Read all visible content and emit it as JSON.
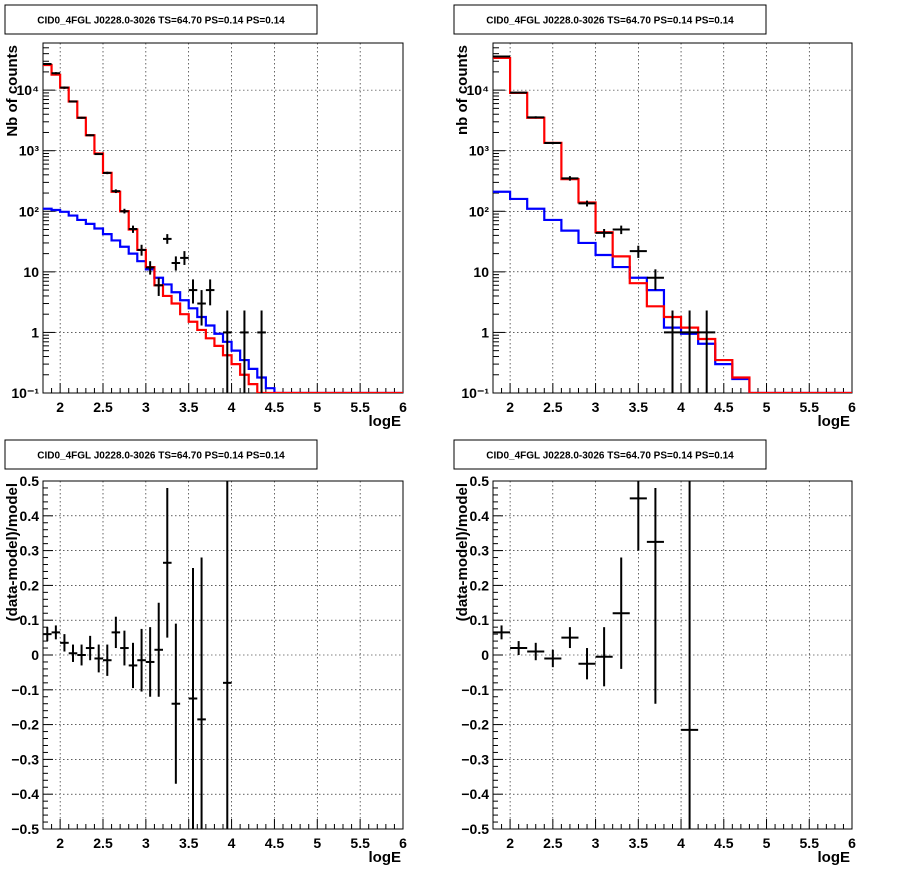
{
  "chart_data": [
    {
      "panel": "top-left",
      "type": "line",
      "title": "CID0_4FGL J0228.0-3026 TS=64.70 PS=0.14 PS=0.14",
      "xlabel": "logE",
      "ylabel": "Nb of counts",
      "xlim": [
        1.8,
        6
      ],
      "ylim": [
        0.1,
        60000
      ],
      "yscale": "log",
      "grid": true,
      "x_ticks": [
        "2",
        "2.5",
        "3",
        "3.5",
        "4",
        "4.5",
        "5",
        "5.5",
        "6"
      ],
      "y_ticks": [
        "10⁻¹",
        "1",
        "10",
        "10²",
        "10³",
        "10⁴"
      ],
      "bin_edges": [
        1.8,
        1.9,
        2.0,
        2.1,
        2.2,
        2.3,
        2.4,
        2.5,
        2.6,
        2.7,
        2.8,
        2.9,
        3.0,
        3.1,
        3.2,
        3.3,
        3.4,
        3.5,
        3.6,
        3.7,
        3.8,
        3.9,
        4.0,
        4.1,
        4.2,
        4.3,
        4.4,
        4.5,
        4.6,
        4.7,
        4.8,
        4.9,
        5.0,
        5.1,
        5.2,
        5.3,
        5.4,
        5.5,
        5.6,
        5.7,
        5.8,
        5.9,
        6.0
      ],
      "series": [
        {
          "kind": "step",
          "color": "#0000ff",
          "values": [
            110,
            105,
            98,
            85,
            72,
            62,
            52,
            42,
            33,
            26,
            20,
            15,
            11,
            8,
            6.2,
            4.6,
            3.4,
            2.5,
            1.8,
            1.3,
            0.95,
            0.7,
            0.5,
            0.35,
            0.25,
            0.18,
            0.12,
            0.1,
            0.1,
            0.1,
            0.1,
            0.1,
            0.1,
            0.1,
            0.1,
            0.1,
            0.1,
            0.1,
            0.1,
            0.1,
            0.1,
            0.1
          ]
        },
        {
          "kind": "step",
          "color": "#ff0000",
          "values": [
            26000,
            18000,
            11000,
            6500,
            3500,
            1800,
            900,
            430,
            210,
            100,
            50,
            23,
            12,
            6,
            4,
            3,
            2,
            1.5,
            1.1,
            0.8,
            0.6,
            0.42,
            0.3,
            0.2,
            0.14,
            0.1,
            0.1,
            0.1,
            0.1,
            0.1,
            0.1,
            0.1,
            0.1,
            0.1,
            0.1,
            0.1,
            0.1,
            0.1,
            0.1,
            0.1,
            0.1,
            0.1
          ]
        },
        {
          "kind": "points",
          "color": "#000000",
          "x": [
            1.85,
            1.95,
            2.05,
            2.15,
            2.25,
            2.35,
            2.45,
            2.55,
            2.65,
            2.75,
            2.85,
            2.95,
            3.05,
            3.15,
            3.25,
            3.35,
            3.45,
            3.55,
            3.65,
            3.75,
            3.95,
            4.15,
            4.35
          ],
          "y": [
            27000,
            19000,
            11000,
            6500,
            3500,
            1800,
            880,
            430,
            215,
            100,
            51,
            23,
            11.8,
            6,
            35,
            14,
            17,
            5,
            3,
            5,
            1,
            1,
            1
          ],
          "ylo": [
            26000,
            18200,
            10500,
            6300,
            3380,
            1740,
            850,
            410,
            200,
            92,
            44,
            18.5,
            9,
            4,
            29,
            10.5,
            13,
            3,
            1.3,
            2.8,
            0.1,
            0.1,
            0.1
          ],
          "yhi": [
            28000,
            19800,
            11500,
            6700,
            3620,
            1860,
            910,
            450,
            230,
            110,
            58,
            28,
            15,
            8,
            42,
            18,
            22,
            7.5,
            5,
            7.5,
            2.3,
            2.3,
            2.3
          ]
        }
      ]
    },
    {
      "panel": "top-right",
      "type": "line",
      "title": "CID0_4FGL J0228.0-3026 TS=64.70 PS=0.14 PS=0.14",
      "xlabel": "logE",
      "ylabel": "nb of counts",
      "xlim": [
        1.8,
        6
      ],
      "ylim": [
        0.1,
        60000
      ],
      "yscale": "log",
      "grid": true,
      "x_ticks": [
        "2",
        "2.5",
        "3",
        "3.5",
        "4",
        "4.5",
        "5",
        "5.5",
        "6"
      ],
      "y_ticks": [
        "10⁻¹",
        "1",
        "10",
        "10²",
        "10³",
        "10⁴"
      ],
      "bin_edges": [
        1.8,
        2.0,
        2.2,
        2.4,
        2.6,
        2.8,
        3.0,
        3.2,
        3.4,
        3.6,
        3.8,
        4.0,
        4.2,
        4.4,
        4.6,
        4.8,
        5.0,
        5.2,
        5.4,
        5.6,
        5.8,
        6.0
      ],
      "series": [
        {
          "kind": "step",
          "color": "#0000ff",
          "values": [
            210,
            160,
            110,
            72,
            48,
            30,
            19,
            12,
            8,
            5,
            1.2,
            0.95,
            0.65,
            0.3,
            0.17,
            0.1,
            0.1,
            0.1,
            0.1,
            0.1,
            0.1
          ]
        },
        {
          "kind": "step",
          "color": "#ff0000",
          "values": [
            34000,
            9000,
            3500,
            1350,
            340,
            140,
            45,
            18,
            6.5,
            2.7,
            1.8,
            1.2,
            0.78,
            0.35,
            0.18,
            0.1,
            0.1,
            0.1,
            0.1,
            0.1,
            0.1
          ]
        },
        {
          "kind": "points",
          "color": "#000000",
          "x": [
            1.9,
            2.1,
            2.3,
            2.5,
            2.7,
            2.9,
            3.1,
            3.3,
            3.5,
            3.7,
            3.9,
            4.1,
            4.3
          ],
          "y": [
            36000,
            9100,
            3550,
            1340,
            350,
            135,
            44,
            50,
            22,
            8,
            1,
            1,
            1
          ],
          "ylo": [
            35000,
            8900,
            3400,
            1280,
            320,
            120,
            37,
            42,
            17,
            5,
            0.1,
            0.1,
            0.1
          ],
          "yhi": [
            37000,
            9300,
            3700,
            1400,
            380,
            150,
            51,
            58,
            27,
            11,
            2.3,
            2.3,
            2.3
          ]
        }
      ]
    },
    {
      "panel": "bottom-left",
      "type": "scatter",
      "title": "CID0_4FGL J0228.0-3026 TS=64.70 PS=0.14 PS=0.14",
      "xlabel": "logE",
      "ylabel": "(data-model)/model",
      "xlim": [
        1.8,
        6
      ],
      "ylim": [
        -0.5,
        0.5
      ],
      "grid": true,
      "x_ticks": [
        "2",
        "2.5",
        "3",
        "3.5",
        "4",
        "4.5",
        "5",
        "5.5",
        "6"
      ],
      "y_ticks": [
        "−0.5",
        "−0.4",
        "−0.3",
        "−0.2",
        "−0.1",
        "0",
        "0.1",
        "0.2",
        "0.3",
        "0.4",
        "0.5"
      ],
      "series": [
        {
          "kind": "points",
          "color": "#000000",
          "x": [
            1.85,
            1.95,
            2.05,
            2.15,
            2.25,
            2.35,
            2.45,
            2.55,
            2.65,
            2.75,
            2.85,
            2.95,
            3.05,
            3.15,
            3.25,
            3.35,
            3.55,
            3.65,
            3.95
          ],
          "y": [
            0.06,
            0.065,
            0.035,
            0.005,
            0.0,
            0.02,
            -0.01,
            -0.015,
            0.065,
            0.02,
            -0.03,
            -0.015,
            -0.02,
            0.015,
            0.265,
            -0.14,
            -0.125,
            -0.185,
            -0.08
          ],
          "ylo": [
            0.04,
            0.045,
            0.01,
            -0.02,
            -0.03,
            -0.015,
            -0.05,
            -0.06,
            0.02,
            -0.03,
            -0.095,
            -0.105,
            -0.12,
            -0.12,
            0.05,
            -0.37,
            -0.5,
            -0.5,
            -0.5
          ],
          "yhi": [
            0.08,
            0.085,
            0.06,
            0.03,
            0.03,
            0.055,
            0.03,
            0.03,
            0.11,
            0.07,
            0.035,
            0.075,
            0.08,
            0.15,
            0.48,
            0.09,
            0.25,
            0.28,
            0.5
          ]
        }
      ]
    },
    {
      "panel": "bottom-right",
      "type": "scatter",
      "title": "CID0_4FGL J0228.0-3026 TS=64.70 PS=0.14 PS=0.14",
      "xlabel": "logE",
      "ylabel": "(data-model)/model",
      "xlim": [
        1.8,
        6
      ],
      "ylim": [
        -0.5,
        0.5
      ],
      "grid": true,
      "x_ticks": [
        "2",
        "2.5",
        "3",
        "3.5",
        "4",
        "4.5",
        "5",
        "5.5",
        "6"
      ],
      "y_ticks": [
        "−0.5",
        "−0.4",
        "−0.3",
        "−0.2",
        "−0.1",
        "0",
        "0.1",
        "0.2",
        "0.3",
        "0.4",
        "0.5"
      ],
      "series": [
        {
          "kind": "points",
          "color": "#000000",
          "x": [
            1.9,
            2.1,
            2.3,
            2.5,
            2.7,
            2.9,
            3.1,
            3.3,
            3.5,
            3.7,
            4.1
          ],
          "y": [
            0.065,
            0.02,
            0.01,
            -0.01,
            0.05,
            -0.025,
            -0.005,
            0.12,
            0.45,
            0.325,
            -0.215
          ],
          "ylo": [
            0.045,
            0.0,
            -0.015,
            -0.035,
            0.02,
            -0.07,
            -0.09,
            -0.04,
            0.3,
            -0.14,
            -0.5
          ],
          "yhi": [
            0.085,
            0.04,
            0.035,
            0.015,
            0.08,
            0.02,
            0.08,
            0.28,
            0.5,
            0.48,
            0.5
          ]
        }
      ]
    }
  ]
}
